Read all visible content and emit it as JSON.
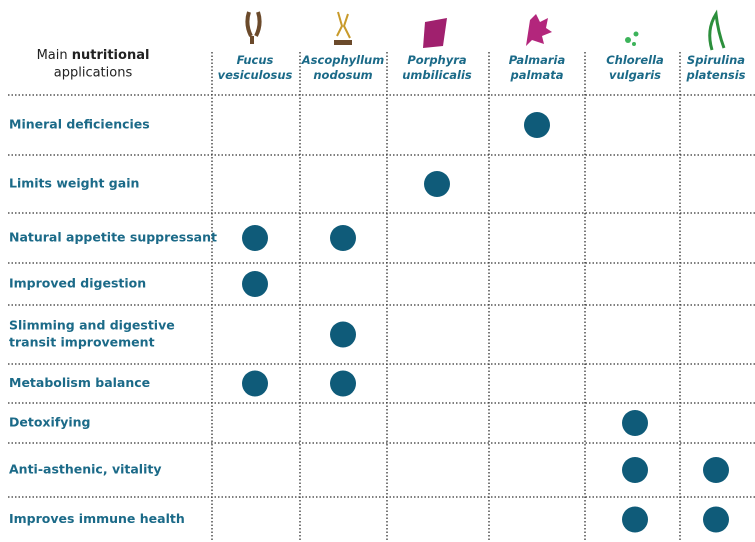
{
  "header": {
    "title": [
      "Main",
      "nutritional",
      "applications"
    ]
  },
  "columns": [
    {
      "name": [
        "Fucus",
        "vesiculosus"
      ]
    },
    {
      "name": [
        "Ascophyllum",
        "nodosum"
      ]
    },
    {
      "name": [
        "Porphyra",
        "umbilicalis"
      ]
    },
    {
      "name": [
        "Palmaria",
        "palmata"
      ]
    },
    {
      "name": [
        "Chlorella",
        "vulgaris"
      ]
    },
    {
      "name": [
        "Spirulina",
        "platensis"
      ]
    }
  ],
  "rows": [
    {
      "label": [
        "Mineral deficiencies"
      ],
      "cells": [
        false,
        false,
        false,
        true,
        false,
        false
      ]
    },
    {
      "label": [
        "Limits weight gain"
      ],
      "cells": [
        false,
        false,
        true,
        false,
        false,
        false
      ]
    },
    {
      "label": [
        "Natural appetite suppressant"
      ],
      "cells": [
        true,
        true,
        false,
        false,
        false,
        false
      ]
    },
    {
      "label": [
        "Improved digestion"
      ],
      "cells": [
        true,
        false,
        false,
        false,
        false,
        false
      ]
    },
    {
      "label": [
        "Slimming and digestive",
        "transit improvement"
      ],
      "cells": [
        false,
        true,
        false,
        false,
        false,
        false
      ]
    },
    {
      "label": [
        "Metabolism balance"
      ],
      "cells": [
        true,
        true,
        false,
        false,
        false,
        false
      ]
    },
    {
      "label": [
        "Detoxifying"
      ],
      "cells": [
        false,
        false,
        false,
        false,
        true,
        false
      ]
    },
    {
      "label": [
        "Anti-asthenic, vitality"
      ],
      "cells": [
        false,
        false,
        false,
        false,
        true,
        true
      ]
    },
    {
      "label": [
        "Improves immune health"
      ],
      "cells": [
        false,
        false,
        false,
        false,
        true,
        true
      ]
    }
  ]
}
